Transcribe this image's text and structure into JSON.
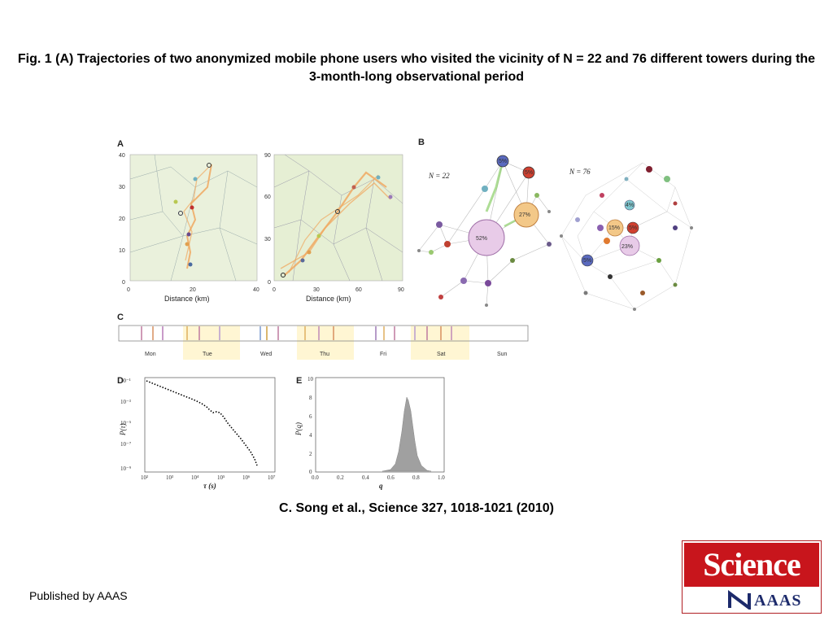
{
  "title": "Fig. 1 (A) Trajectories of two anonymized mobile phone users who visited the vicinity of N = 22 and 76 different towers during the 3-month-long observational period",
  "citation": "C.  Song et al.,  Science  327, 1018-1021 (2010)",
  "publisher": "Published by AAAS",
  "logo": {
    "top": "Science",
    "bottom": "AAAS"
  },
  "panels": {
    "A": {
      "label": "A",
      "left_yticks": [
        "40",
        "30",
        "20",
        "10",
        "0"
      ],
      "left_xticks": [
        "0",
        "20",
        "40"
      ],
      "right_yticks": [
        "90",
        "60",
        "30",
        "0"
      ],
      "right_xticks": [
        "0",
        "30",
        "60",
        "90"
      ],
      "xlabel": "Distance (km)"
    },
    "B": {
      "label": "B",
      "net1_label": "N = 22",
      "net2_label": "N = 76",
      "net1_pcts": [
        "52%",
        "27%",
        "5%",
        "5%"
      ],
      "net2_pcts": [
        "23%",
        "15%",
        "5%",
        "4%",
        "5%"
      ]
    },
    "C": {
      "label": "C",
      "days": [
        "Mon",
        "Tue",
        "Wed",
        "Thu",
        "Fri",
        "Sat",
        "Sun"
      ]
    },
    "D": {
      "label": "D",
      "yticks": [
        "10⁻¹",
        "10⁻³",
        "10⁻⁵",
        "10⁻⁷",
        "10⁻⁹"
      ],
      "xticks": [
        "10²",
        "10³",
        "10⁴",
        "10⁵",
        "10⁶",
        "10⁷"
      ],
      "xlabel": "τ (s)",
      "ylabel": "P(τ)"
    },
    "E": {
      "label": "E",
      "yticks": [
        "10",
        "8",
        "6",
        "4",
        "2",
        "0"
      ],
      "xticks": [
        "0.0",
        "0.2",
        "0.4",
        "0.6",
        "0.8",
        "1.0"
      ],
      "xlabel": "q",
      "ylabel": "P(q)"
    }
  },
  "colors": {
    "trajectory": "#f0a860",
    "map_bg": "#e8f0d8",
    "highlight": "#fff4c0",
    "logo_red": "#c8151c",
    "logo_blue": "#1c2a6b"
  }
}
